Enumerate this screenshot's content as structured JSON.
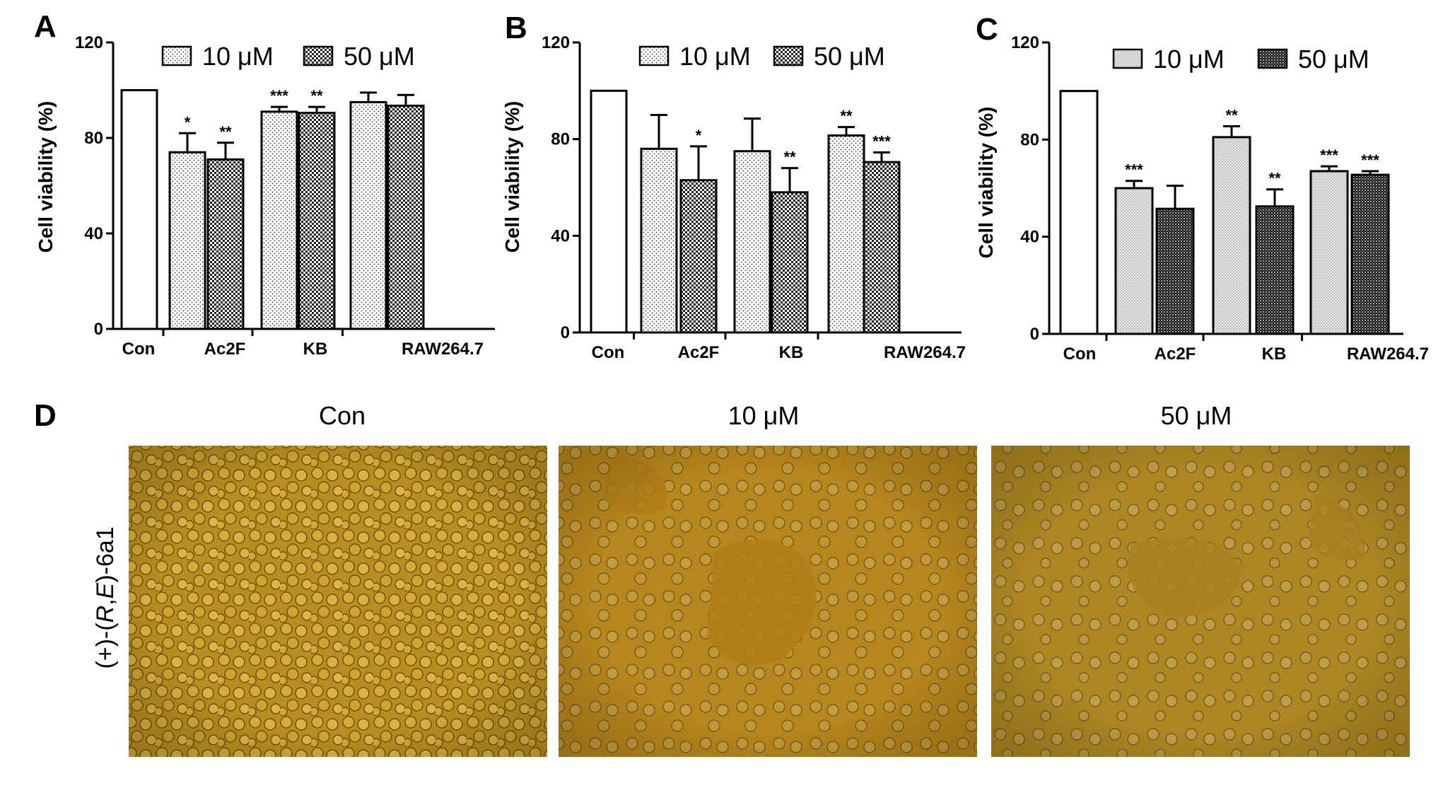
{
  "chart_data": [
    {
      "type": "bar",
      "panel_label": "A",
      "ylabel": "Cell viability (%)",
      "ylim": [
        0,
        120
      ],
      "yticks": [
        0,
        40,
        80,
        120
      ],
      "categories": [
        "Con",
        "Ac2F",
        "KB",
        "RAW264.7"
      ],
      "legend": [
        "10 μM",
        "50 μM"
      ],
      "bars": [
        {
          "category": "Con",
          "series": "Con",
          "value": 100,
          "err": 0,
          "sig": ""
        },
        {
          "category": "Ac2F",
          "series": "10 μM",
          "value": 74,
          "err": 8,
          "sig": "*"
        },
        {
          "category": "Ac2F",
          "series": "50 μM",
          "value": 71,
          "err": 7,
          "sig": "**"
        },
        {
          "category": "KB",
          "series": "10 μM",
          "value": 91,
          "err": 2,
          "sig": "***"
        },
        {
          "category": "KB",
          "series": "50 μM",
          "value": 90.5,
          "err": 2.5,
          "sig": "**"
        },
        {
          "category": "RAW264.7",
          "series": "10 μM",
          "value": 95,
          "err": 4,
          "sig": ""
        },
        {
          "category": "RAW264.7",
          "series": "50 μM",
          "value": 93.5,
          "err": 4.5,
          "sig": ""
        }
      ]
    },
    {
      "type": "bar",
      "panel_label": "B",
      "ylabel": "Cell viability (%)",
      "ylim": [
        0,
        120
      ],
      "yticks": [
        0,
        40,
        80,
        120
      ],
      "categories": [
        "Con",
        "Ac2F",
        "KB",
        "RAW264.7"
      ],
      "legend": [
        "10 μM",
        "50 μM"
      ],
      "bars": [
        {
          "category": "Con",
          "series": "Con",
          "value": 100,
          "err": 0,
          "sig": ""
        },
        {
          "category": "Ac2F",
          "series": "10 μM",
          "value": 76,
          "err": 14,
          "sig": ""
        },
        {
          "category": "Ac2F",
          "series": "50 μM",
          "value": 63,
          "err": 14,
          "sig": "*"
        },
        {
          "category": "KB",
          "series": "10 μM",
          "value": 75,
          "err": 13.5,
          "sig": ""
        },
        {
          "category": "KB",
          "series": "50 μM",
          "value": 58,
          "err": 10,
          "sig": "**"
        },
        {
          "category": "RAW264.7",
          "series": "10 μM",
          "value": 81.5,
          "err": 3.5,
          "sig": "**"
        },
        {
          "category": "RAW264.7",
          "series": "50 μM",
          "value": 70.5,
          "err": 4,
          "sig": "***"
        }
      ]
    },
    {
      "type": "bar",
      "panel_label": "C",
      "ylabel": "Cell viability (%)",
      "ylim": [
        0,
        120
      ],
      "yticks": [
        0,
        40,
        80,
        120
      ],
      "categories": [
        "Con",
        "Ac2F",
        "KB",
        "RAW264.7"
      ],
      "legend": [
        "10 μM",
        "50 μM"
      ],
      "bars": [
        {
          "category": "Con",
          "series": "Con",
          "value": 100,
          "err": 0,
          "sig": ""
        },
        {
          "category": "Ac2F",
          "series": "10 μM",
          "value": 60,
          "err": 3,
          "sig": "***"
        },
        {
          "category": "Ac2F",
          "series": "50 μM",
          "value": 51.5,
          "err": 9.5,
          "sig": ""
        },
        {
          "category": "KB",
          "series": "10 μM",
          "value": 81,
          "err": 4.5,
          "sig": "**"
        },
        {
          "category": "KB",
          "series": "50 μM",
          "value": 52.5,
          "err": 7,
          "sig": "**"
        },
        {
          "category": "RAW264.7",
          "series": "10 μM",
          "value": 67,
          "err": 2,
          "sig": "***"
        },
        {
          "category": "RAW264.7",
          "series": "50 μM",
          "value": 65.5,
          "err": 1.5,
          "sig": "***"
        }
      ]
    }
  ],
  "panel_d": {
    "label": "D",
    "columns": [
      "Con",
      "10 μM",
      "50 μM"
    ],
    "row_label_prefix": "(+)-(",
    "row_label_italic_r": "R",
    "row_label_comma": ",",
    "row_label_italic_e": "E",
    "row_label_suffix": ")-6a1",
    "image_colors": {
      "con": "#b98e20",
      "mid": "#b7861c",
      "high": "#ad8722"
    }
  }
}
